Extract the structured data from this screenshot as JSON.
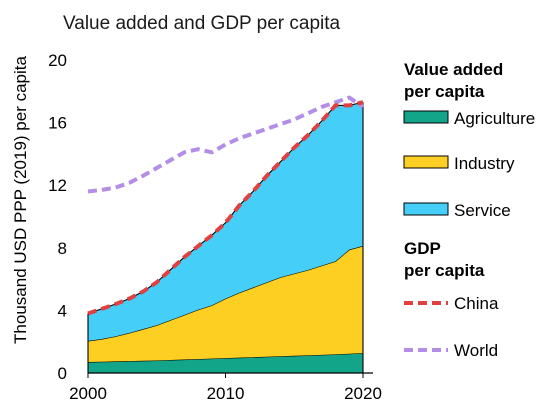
{
  "chart_data": {
    "type": "area",
    "title": "Value added and GDP per capita",
    "ylabel": "Thousand USD PPP (2019) per capita",
    "xlabel": "",
    "x": [
      2000,
      2001,
      2002,
      2003,
      2004,
      2005,
      2006,
      2007,
      2008,
      2009,
      2010,
      2011,
      2012,
      2013,
      2014,
      2015,
      2016,
      2017,
      2018,
      2019,
      2020
    ],
    "xlim": [
      2000,
      2020
    ],
    "xticks": [
      2000,
      2010,
      2020
    ],
    "ylim": [
      0,
      20
    ],
    "yticks": [
      0,
      4,
      8,
      12,
      16,
      20
    ],
    "grid": false,
    "legend_placement": "right",
    "stacked_series": [
      {
        "name": "Agriculture",
        "color": "#12a58a",
        "values": [
          0.7,
          0.72,
          0.74,
          0.76,
          0.78,
          0.8,
          0.83,
          0.86,
          0.89,
          0.92,
          0.95,
          0.98,
          1.01,
          1.04,
          1.07,
          1.1,
          1.13,
          1.16,
          1.19,
          1.23,
          1.27
        ]
      },
      {
        "name": "Industry",
        "color": "#fccf22",
        "values": [
          1.35,
          1.45,
          1.6,
          1.8,
          2.02,
          2.25,
          2.55,
          2.85,
          3.15,
          3.4,
          3.8,
          4.15,
          4.45,
          4.75,
          5.05,
          5.25,
          5.45,
          5.7,
          5.95,
          6.65,
          6.85
        ]
      },
      {
        "name": "Service",
        "color": "#45cff8",
        "values": [
          1.75,
          1.93,
          2.06,
          2.19,
          2.4,
          2.75,
          3.22,
          3.69,
          4.06,
          4.48,
          4.85,
          5.57,
          6.14,
          6.81,
          7.38,
          8.05,
          8.62,
          9.24,
          9.96,
          9.22,
          9.18
        ]
      }
    ],
    "line_series": [
      {
        "name": "China",
        "color": "#e04040",
        "dash": "dashed",
        "values": [
          3.8,
          4.1,
          4.4,
          4.75,
          5.2,
          5.8,
          6.6,
          7.4,
          8.1,
          8.8,
          9.6,
          10.7,
          11.6,
          12.6,
          13.5,
          14.4,
          15.2,
          16.1,
          17.1,
          17.1,
          17.3
        ]
      },
      {
        "name": "World",
        "color": "#b48ee6",
        "dash": "dashed",
        "values": [
          11.6,
          11.7,
          11.85,
          12.15,
          12.6,
          13.1,
          13.6,
          14.1,
          14.3,
          14.1,
          14.6,
          15.0,
          15.3,
          15.6,
          15.9,
          16.2,
          16.6,
          17.0,
          17.3,
          17.6,
          17.0
        ]
      }
    ],
    "legend": {
      "area_heading": "Value added per capita",
      "area_heading_lines": [
        "Value added",
        "per capita"
      ],
      "line_heading": "GDP per capita",
      "line_heading_lines": [
        "GDP",
        "per capita"
      ],
      "area_items": [
        "Agriculture",
        "Industry",
        "Service"
      ],
      "line_items": [
        "China",
        "World"
      ]
    }
  }
}
